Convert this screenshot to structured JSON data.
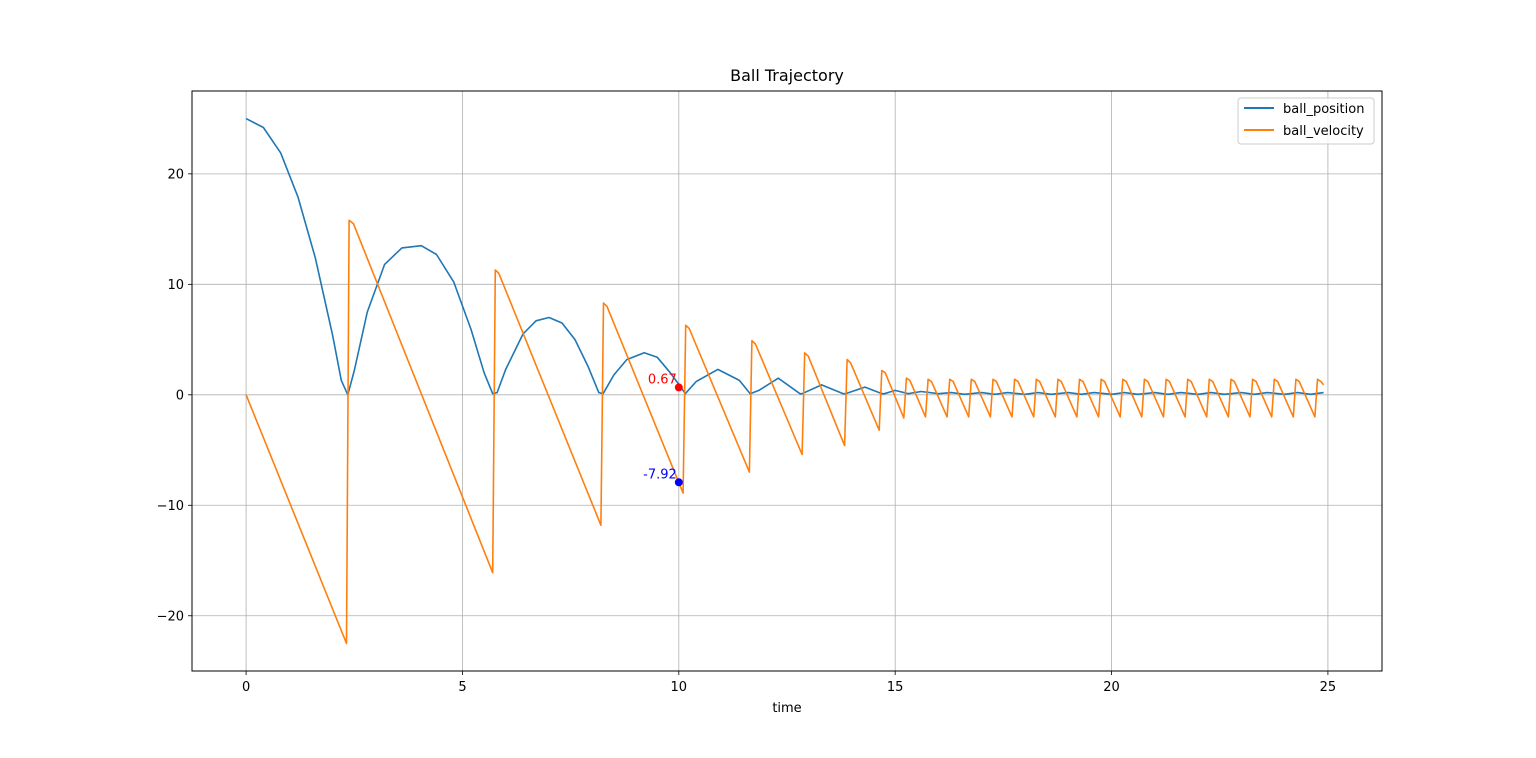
{
  "chart_data": {
    "type": "line",
    "title": "Ball Trajectory",
    "xlabel": "time",
    "ylabel": "",
    "xlim": [
      -1.25,
      26.25
    ],
    "ylim": [
      -25,
      27.5
    ],
    "xticks": [
      0,
      5,
      10,
      15,
      20,
      25
    ],
    "xtick_labels": [
      "0",
      "5",
      "10",
      "15",
      "20",
      "25"
    ],
    "yticks": [
      -20,
      -10,
      0,
      10,
      20
    ],
    "ytick_labels": [
      "−20",
      "−10",
      "0",
      "10",
      "20"
    ],
    "grid": true,
    "legend_position": "top-right",
    "series": [
      {
        "name": "ball_position",
        "color": "#1f77b4",
        "x": [
          0,
          0.4,
          0.8,
          1.2,
          1.6,
          2.0,
          2.2,
          2.35,
          2.5,
          2.8,
          3.2,
          3.6,
          4.05,
          4.4,
          4.8,
          5.2,
          5.5,
          5.7,
          5.8,
          6.0,
          6.4,
          6.7,
          7.0,
          7.3,
          7.6,
          7.9,
          8.15,
          8.25,
          8.5,
          8.8,
          9.2,
          9.5,
          9.8,
          10.05,
          10.15,
          10.4,
          10.9,
          11.4,
          11.65,
          11.85,
          12.3,
          12.8,
          12.85,
          13.3,
          13.8,
          13.85,
          14.3,
          14.7,
          14.75,
          15.0,
          15.3,
          15.6,
          16.0,
          16.3,
          16.6,
          17.0,
          17.3,
          17.6,
          18.0,
          18.3,
          18.6,
          19.0,
          19.3,
          19.6,
          20.0,
          20.3,
          20.6,
          21.0,
          21.3,
          21.6,
          22.0,
          22.3,
          22.6,
          23.0,
          23.3,
          23.6,
          24.0,
          24.3,
          24.6,
          24.9
        ],
        "y": [
          25,
          24.2,
          21.9,
          17.9,
          12.4,
          5.4,
          1.3,
          0,
          2.2,
          7.5,
          11.8,
          13.3,
          13.5,
          12.7,
          10.2,
          5.9,
          2.0,
          0.1,
          0.2,
          2.3,
          5.5,
          6.7,
          7.0,
          6.5,
          5.0,
          2.6,
          0.2,
          0.1,
          1.8,
          3.2,
          3.8,
          3.4,
          2.0,
          0.67,
          0.1,
          1.2,
          2.3,
          1.3,
          0.1,
          0.4,
          1.5,
          0.1,
          0.1,
          0.9,
          0.1,
          0.1,
          0.7,
          0.1,
          0.1,
          0.4,
          0.1,
          0.3,
          0.1,
          0.2,
          0.05,
          0.2,
          0.05,
          0.2,
          0.05,
          0.2,
          0.05,
          0.2,
          0.05,
          0.2,
          0.05,
          0.2,
          0.05,
          0.2,
          0.05,
          0.2,
          0.05,
          0.2,
          0.05,
          0.2,
          0.05,
          0.2,
          0.05,
          0.2,
          0.05,
          0.2
        ]
      },
      {
        "name": "ball_velocity",
        "color": "#ff7f0e",
        "x": [
          0,
          2.32,
          2.38,
          2.48,
          5.7,
          5.76,
          5.84,
          8.2,
          8.26,
          8.34,
          10.1,
          10.16,
          10.24,
          11.63,
          11.69,
          11.77,
          12.85,
          12.91,
          12.99,
          13.83,
          13.89,
          13.97,
          14.63,
          14.69,
          14.77,
          15.2,
          15.26,
          15.34,
          15.7,
          15.76,
          15.84,
          16.2,
          16.26,
          16.34,
          16.7,
          16.76,
          16.84,
          17.2,
          17.26,
          17.34,
          17.7,
          17.76,
          17.84,
          18.2,
          18.26,
          18.34,
          18.7,
          18.76,
          18.84,
          19.2,
          19.26,
          19.34,
          19.7,
          19.76,
          19.84,
          20.2,
          20.26,
          20.34,
          20.7,
          20.76,
          20.84,
          21.2,
          21.26,
          21.34,
          21.7,
          21.76,
          21.84,
          22.2,
          22.26,
          22.34,
          22.7,
          22.76,
          22.84,
          23.2,
          23.26,
          23.34,
          23.7,
          23.76,
          23.84,
          24.2,
          24.26,
          24.34,
          24.7,
          24.76,
          24.84,
          24.9
        ],
        "y": [
          0,
          -22.5,
          15.8,
          15.5,
          -16.1,
          11.3,
          11.0,
          -11.8,
          8.3,
          8.0,
          -8.9,
          6.3,
          6.0,
          -7.0,
          4.9,
          4.6,
          -5.4,
          3.8,
          3.5,
          -4.6,
          3.2,
          2.9,
          -3.2,
          2.2,
          2.0,
          -2.1,
          1.5,
          1.3,
          -2.0,
          1.4,
          1.2,
          -2.0,
          1.4,
          1.2,
          -2.0,
          1.4,
          1.2,
          -2.0,
          1.4,
          1.2,
          -2.0,
          1.4,
          1.2,
          -2.0,
          1.4,
          1.2,
          -2.0,
          1.4,
          1.2,
          -2.0,
          1.4,
          1.2,
          -2.0,
          1.4,
          1.2,
          -2.0,
          1.4,
          1.2,
          -2.0,
          1.4,
          1.2,
          -2.0,
          1.4,
          1.2,
          -2.0,
          1.4,
          1.2,
          -2.0,
          1.4,
          1.2,
          -2.0,
          1.4,
          1.2,
          -2.0,
          1.4,
          1.2,
          -2.0,
          1.4,
          1.2,
          -2.0,
          1.4,
          1.2,
          -2.0,
          1.4,
          1.2,
          0.9
        ]
      }
    ],
    "annotations": [
      {
        "x": 10.0,
        "y": 0.67,
        "label": "0.67",
        "color": "#ff0000"
      },
      {
        "x": 10.0,
        "y": -7.92,
        "label": "-7.92",
        "color": "#0000ff"
      }
    ]
  }
}
